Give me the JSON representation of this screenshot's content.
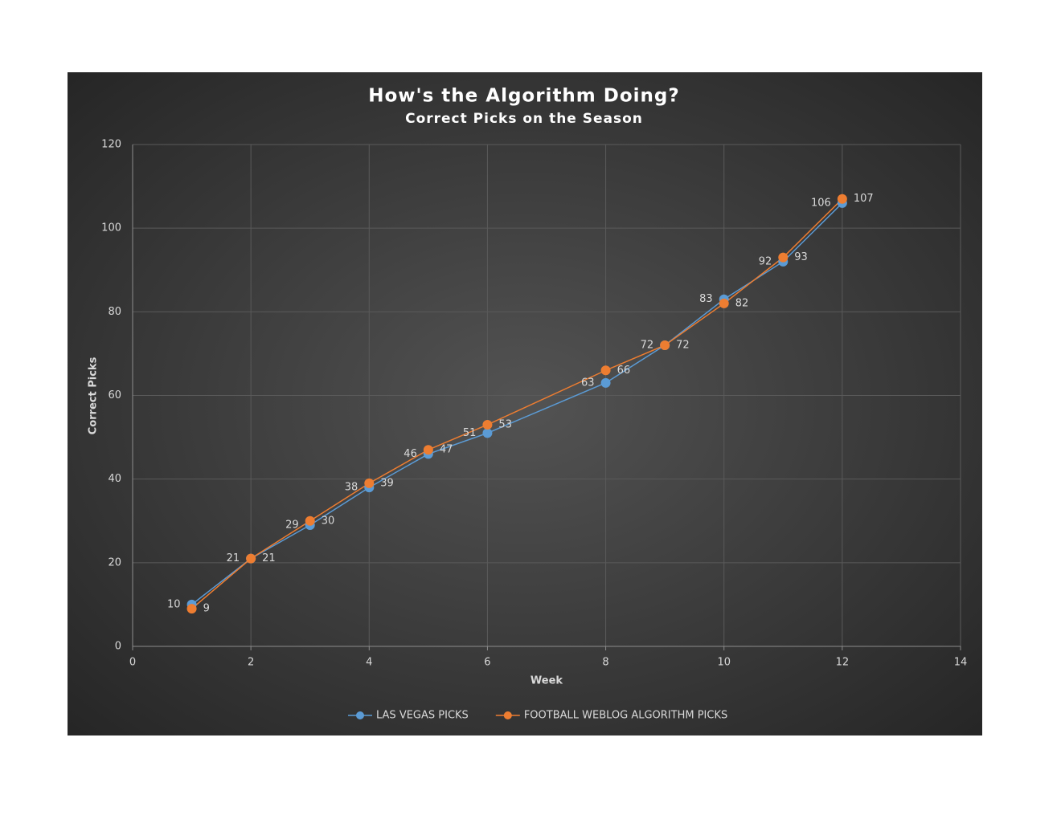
{
  "chart_data": {
    "type": "line",
    "title": "How's the Algorithm Doing?",
    "subtitle": "Correct Picks on the Season",
    "x_label": "Week",
    "y_label": "Correct Picks",
    "x": [
      1,
      2,
      3,
      4,
      5,
      6,
      8,
      9,
      10,
      11,
      12
    ],
    "series": [
      {
        "name": "LAS VEGAS PICKS",
        "color": "#5b9bd5",
        "values": [
          10,
          21,
          29,
          38,
          46,
          51,
          63,
          72,
          83,
          92,
          106
        ]
      },
      {
        "name": "FOOTBALL WEBLOG ALGORITHM PICKS",
        "color": "#ed7d31",
        "values": [
          9,
          21,
          30,
          39,
          47,
          53,
          66,
          72,
          82,
          93,
          107
        ]
      }
    ],
    "xlim": [
      0,
      14
    ],
    "xticks": [
      0,
      2,
      4,
      6,
      8,
      10,
      12,
      14
    ],
    "ylim": [
      0,
      120
    ],
    "yticks": [
      0,
      20,
      40,
      60,
      80,
      100,
      120
    ],
    "grid": true,
    "legend": "bottom"
  }
}
